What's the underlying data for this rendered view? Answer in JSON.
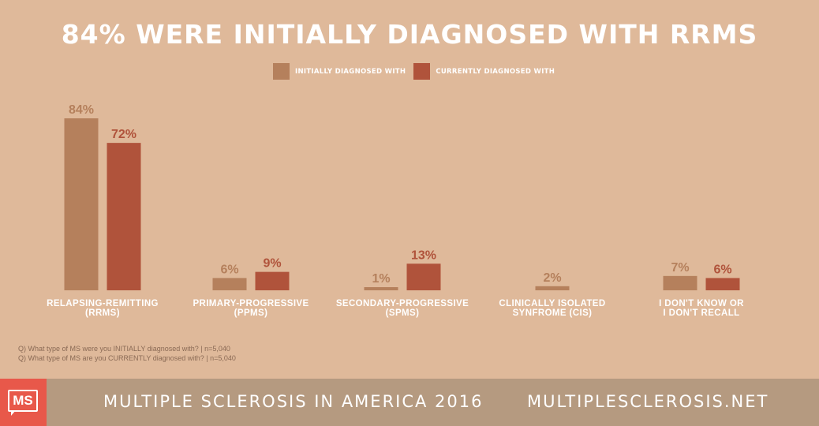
{
  "title": "84% WERE INITIALLY DIAGNOSED WITH RRMS",
  "legend": {
    "initial_label": "INITIALLY DIAGNOSED WITH",
    "current_label": "CURRENTLY DIAGNOSED WITH"
  },
  "colors": {
    "background": "#dfb99a",
    "initial": "#b5805c",
    "current": "#b0533b",
    "footer": "#b59a80",
    "logo": "#e8584a"
  },
  "chart_data": {
    "type": "bar",
    "title": "84% WERE INITIALLY DIAGNOSED WITH RRMS",
    "categories": [
      [
        "RELAPSING-REMITTING",
        "(RRMS)"
      ],
      [
        "PRIMARY-PROGRESSIVE",
        "(PPMS)"
      ],
      [
        "SECONDARY-PROGRESSIVE",
        "(SPMS)"
      ],
      [
        "CLINICALLY ISOLATED",
        "SYNFROME (CIS)"
      ],
      [
        "I DON'T KNOW OR",
        "I DON'T RECALL"
      ]
    ],
    "series": [
      {
        "name": "INITIALLY DIAGNOSED WITH",
        "values": [
          84,
          6,
          1,
          2,
          7
        ],
        "labels": [
          "84%",
          "6%",
          "1%",
          "2%",
          "7%"
        ]
      },
      {
        "name": "CURRENTLY DIAGNOSED WITH",
        "values": [
          72,
          9,
          13,
          null,
          6
        ],
        "labels": [
          "72%",
          "9%",
          "13%",
          "",
          "6%"
        ]
      }
    ],
    "ylim": [
      0,
      100
    ],
    "grid": false,
    "legend_position": "top-center"
  },
  "footnotes": [
    "Q) What type of MS were you INITIALLY diagnosed with? | n=5,040",
    "Q) What type of MS are you CURRENTLY diagnosed with? | n=5,040"
  ],
  "footer": {
    "logo_text": "MS",
    "left_text": "MULTIPLE SCLEROSIS IN AMERICA 2016",
    "right_text": "MULTIPLESCLEROSIS.NET"
  }
}
